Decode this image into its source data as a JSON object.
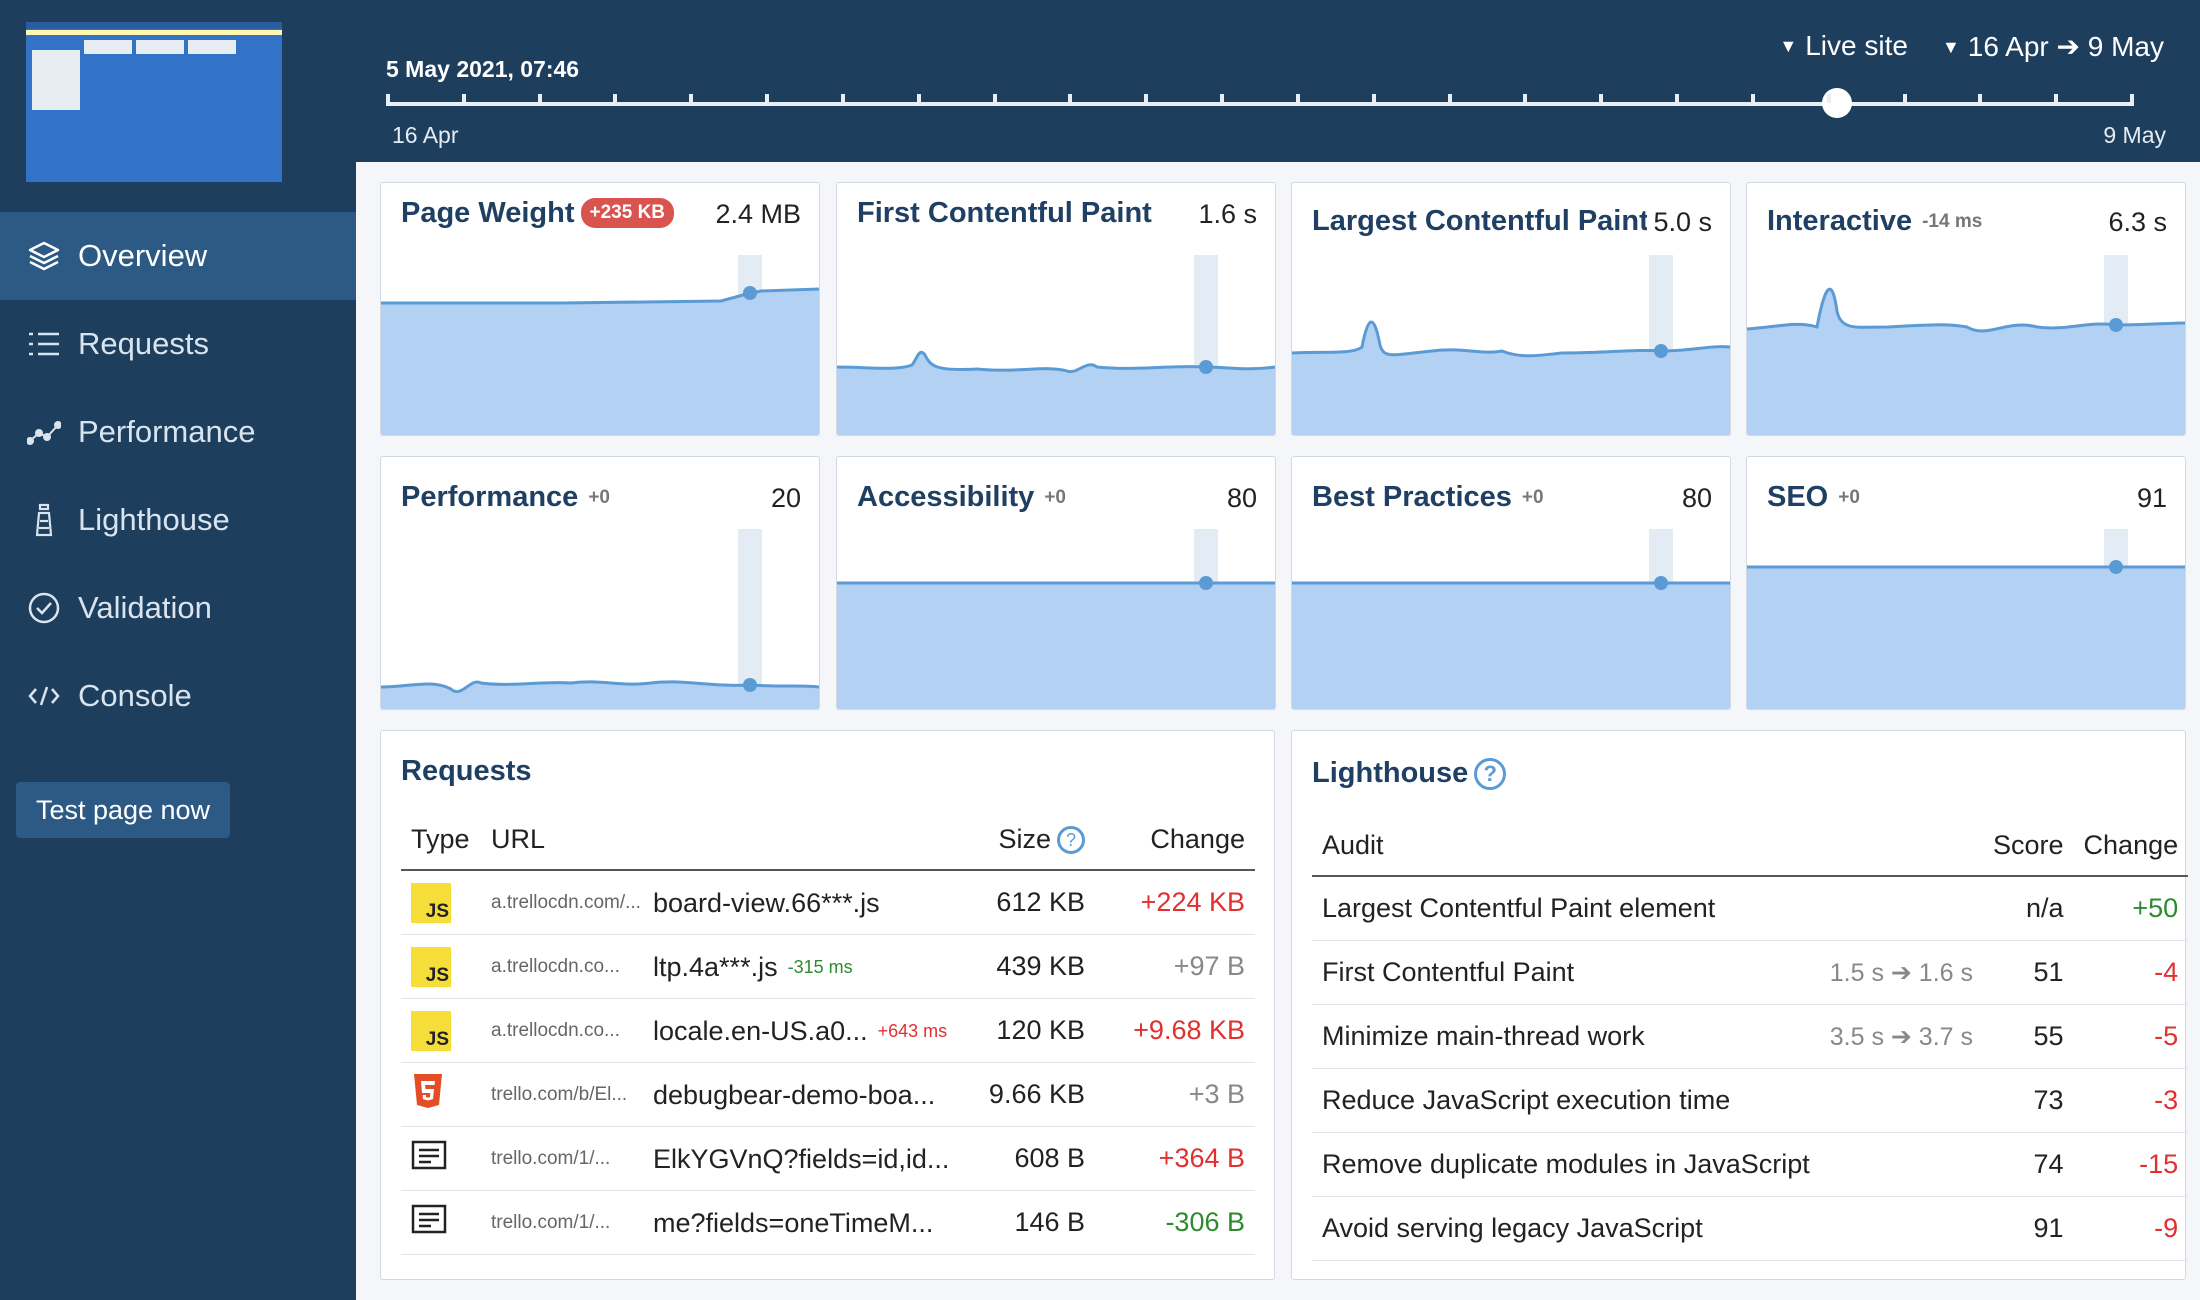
{
  "sidebar": {
    "nav": [
      {
        "label": "Overview",
        "icon": "layers-icon",
        "active": true
      },
      {
        "label": "Requests",
        "icon": "list-icon"
      },
      {
        "label": "Performance",
        "icon": "line-chart-icon"
      },
      {
        "label": "Lighthouse",
        "icon": "lighthouse-icon"
      },
      {
        "label": "Validation",
        "icon": "check-circle-icon"
      },
      {
        "label": "Console",
        "icon": "code-icon"
      }
    ],
    "test_button": "Test page now"
  },
  "topbar": {
    "current_date": "5 May 2021, 07:46",
    "site_selector": "Live site",
    "date_range": "16 Apr ➔ 9 May",
    "timeline_start": "16 Apr",
    "timeline_end": "9 May",
    "timeline_position": 0.83
  },
  "metrics": [
    {
      "title": "Page Weight",
      "badge": "+235 KB",
      "value": "2.4 MB"
    },
    {
      "title": "First Contentful Paint",
      "value": "1.6 s"
    },
    {
      "title": "Largest Contentful Paint",
      "value": "5.0 s"
    },
    {
      "title": "Interactive",
      "delta": "-14 ms",
      "value": "6.3 s"
    },
    {
      "title": "Performance",
      "delta": "+0",
      "value": "20"
    },
    {
      "title": "Accessibility",
      "delta": "+0",
      "value": "80"
    },
    {
      "title": "Best Practices",
      "delta": "+0",
      "value": "80"
    },
    {
      "title": "SEO",
      "delta": "+0",
      "value": "91"
    }
  ],
  "requests": {
    "title": "Requests",
    "headers": {
      "type": "Type",
      "url": "URL",
      "size": "Size",
      "change": "Change"
    },
    "rows": [
      {
        "type": "js",
        "host": "a.trellocdn.com/...",
        "file": "board-view.66***.js",
        "timing": "",
        "size": "612 KB",
        "change": "+224 KB",
        "dir": "pos"
      },
      {
        "type": "js",
        "host": "a.trellocdn.co...",
        "file": "ltp.4a***.js",
        "timing": "-315 ms",
        "timing_dir": "neg",
        "size": "439 KB",
        "change": "+97 B",
        "dir": "neu"
      },
      {
        "type": "js",
        "host": "a.trellocdn.co...",
        "file": "locale.en-US.a0...",
        "timing": "+643 ms",
        "timing_dir": "pos",
        "size": "120 KB",
        "change": "+9.68 KB",
        "dir": "pos"
      },
      {
        "type": "html",
        "host": "trello.com/b/El...",
        "file": "debugbear-demo-boa...",
        "timing": "",
        "size": "9.66 KB",
        "change": "+3 B",
        "dir": "neu"
      },
      {
        "type": "doc",
        "host": "trello.com/1/...",
        "file": "ElkYGVnQ?fields=id,id...",
        "timing": "",
        "size": "608 B",
        "change": "+364 B",
        "dir": "pos"
      },
      {
        "type": "doc",
        "host": "trello.com/1/...",
        "file": "me?fields=oneTimeM...",
        "timing": "",
        "size": "146 B",
        "change": "-306 B",
        "dir": "neg"
      }
    ]
  },
  "lighthouse": {
    "title": "Lighthouse",
    "headers": {
      "audit": "Audit",
      "score": "Score",
      "change": "Change"
    },
    "rows": [
      {
        "audit": "Largest Contentful Paint element",
        "detail": "",
        "score": "n/a",
        "change": "+50",
        "dir": "neg"
      },
      {
        "audit": "First Contentful Paint",
        "detail": "1.5 s ➔ 1.6 s",
        "score": "51",
        "change": "-4",
        "dir": "pos"
      },
      {
        "audit": "Minimize main-thread work",
        "detail": "3.5 s ➔ 3.7 s",
        "score": "55",
        "change": "-5",
        "dir": "pos"
      },
      {
        "audit": "Reduce JavaScript execution time",
        "detail": "",
        "score": "73",
        "change": "-3",
        "dir": "pos"
      },
      {
        "audit": "Remove duplicate modules in JavaScript",
        "detail": "",
        "score": "74",
        "change": "-15",
        "dir": "pos"
      },
      {
        "audit": "Avoid serving legacy JavaScript",
        "detail": "",
        "score": "91",
        "change": "-9",
        "dir": "pos"
      }
    ]
  },
  "colors": {
    "sidebar": "#1d3e5c",
    "accent": "#5b9bd5",
    "area_fill": "#b3d1f2",
    "positive_change": "#e03030",
    "negative_change": "#2f8a2f"
  }
}
